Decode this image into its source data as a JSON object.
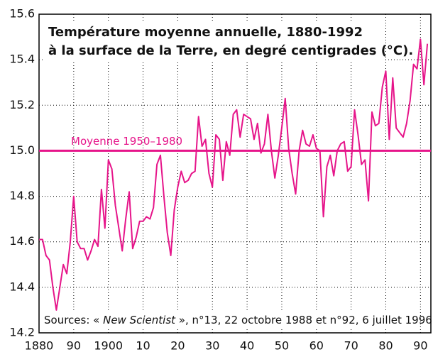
{
  "chart_data": {
    "type": "line",
    "title": [
      "Température moyenne annuelle, 1880-1992",
      "à la surface de la Terre, en degré centigrades (°C)."
    ],
    "source": [
      "Sources: « ",
      "New Scientist",
      " », n°13, 22 octobre 1988 et n°92, 6 juillet 1996"
    ],
    "mean": {
      "label": "Moyenne 1950–1980",
      "value": 15
    },
    "x": [
      1880,
      1881,
      1882,
      1883,
      1884,
      1885,
      1886,
      1887,
      1888,
      1889,
      1890,
      1891,
      1892,
      1893,
      1894,
      1895,
      1896,
      1897,
      1898,
      1899,
      1900,
      1901,
      1902,
      1903,
      1904,
      1905,
      1906,
      1907,
      1908,
      1909,
      1910,
      1911,
      1912,
      1913,
      1914,
      1915,
      1916,
      1917,
      1918,
      1919,
      1920,
      1921,
      1922,
      1923,
      1924,
      1925,
      1926,
      1927,
      1928,
      1929,
      1930,
      1931,
      1932,
      1933,
      1934,
      1935,
      1936,
      1937,
      1938,
      1939,
      1940,
      1941,
      1942,
      1943,
      1944,
      1945,
      1946,
      1947,
      1948,
      1949,
      1950,
      1951,
      1952,
      1953,
      1954,
      1955,
      1956,
      1957,
      1958,
      1959,
      1960,
      1961,
      1962,
      1963,
      1964,
      1965,
      1966,
      1967,
      1968,
      1969,
      1970,
      1971,
      1972,
      1973,
      1974,
      1975,
      1976,
      1977,
      1978,
      1979,
      1980,
      1981,
      1982,
      1983,
      1984,
      1985,
      1986,
      1987,
      1988,
      1989,
      1990,
      1991,
      1992
    ],
    "series": [
      {
        "color": "#e6158a",
        "values": [
          14.61,
          14.61,
          14.54,
          14.52,
          14.4,
          14.3,
          14.4,
          14.5,
          14.46,
          14.6,
          14.8,
          14.6,
          14.57,
          14.57,
          14.52,
          14.56,
          14.61,
          14.58,
          14.83,
          14.66,
          14.96,
          14.92,
          14.76,
          14.66,
          14.56,
          14.7,
          14.82,
          14.57,
          14.62,
          14.69,
          14.69,
          14.71,
          14.7,
          14.75,
          14.94,
          14.98,
          14.8,
          14.64,
          14.54,
          14.74,
          14.84,
          14.91,
          14.86,
          14.87,
          14.9,
          14.91,
          15.15,
          15.02,
          15.05,
          14.9,
          14.84,
          15.07,
          15.05,
          14.87,
          15.04,
          14.98,
          15.16,
          15.18,
          15.06,
          15.16,
          15.15,
          15.14,
          15.05,
          15.12,
          14.99,
          15.03,
          15.16,
          15.0,
          14.88,
          14.98,
          15.1,
          15.23,
          15.01,
          14.9,
          14.81,
          15.0,
          15.09,
          15.03,
          15.02,
          15.07,
          15.01,
          15.0,
          14.71,
          14.93,
          14.98,
          14.89,
          15.0,
          15.03,
          15.04,
          14.91,
          14.93,
          15.18,
          15.07,
          14.94,
          14.96,
          14.78,
          15.17,
          15.11,
          15.12,
          15.28,
          15.35,
          15.05,
          15.32,
          15.1,
          15.08,
          15.06,
          15.12,
          15.22,
          15.38,
          15.36,
          15.49,
          15.29,
          15.47
        ]
      }
    ],
    "xlim": [
      1880,
      1993
    ],
    "ylim": [
      14.2,
      15.6
    ],
    "xticks": [
      1880,
      {
        "value": 1890,
        "label": "90"
      },
      1900,
      {
        "value": 1910,
        "label": "10"
      },
      {
        "value": 1920,
        "label": "20"
      },
      {
        "value": 1930,
        "label": "30"
      },
      {
        "value": 1940,
        "label": "40"
      },
      {
        "value": 1950,
        "label": "50"
      },
      {
        "value": 1960,
        "label": "60"
      },
      {
        "value": 1970,
        "label": "70"
      },
      {
        "value": 1980,
        "label": "80"
      },
      {
        "value": 1990,
        "label": "90"
      }
    ],
    "yticks": [
      14.2,
      14.4,
      14.6,
      14.8,
      {
        "value": 15,
        "label": "15.0"
      },
      15.2,
      15.4,
      15.6
    ],
    "grid": true
  }
}
